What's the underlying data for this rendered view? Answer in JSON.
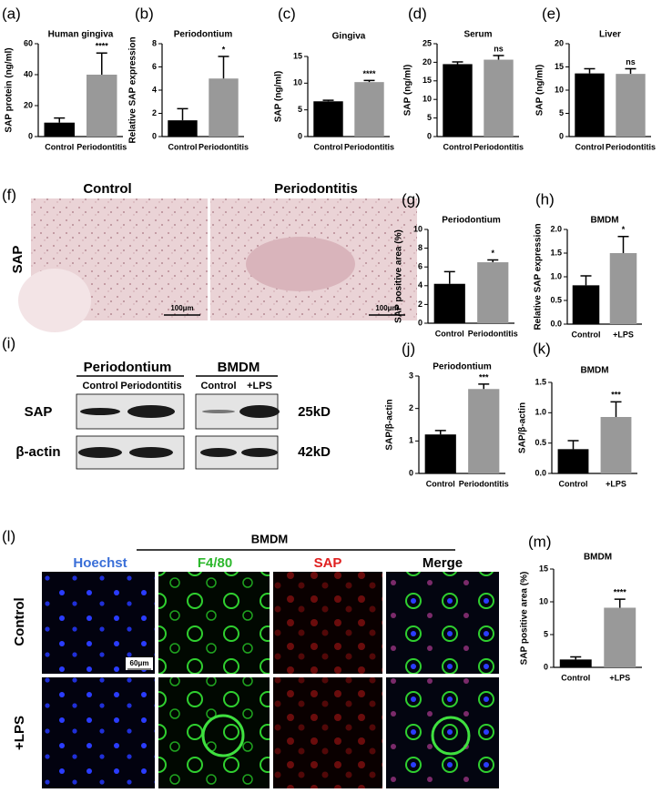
{
  "chart_data": [
    {
      "type": "bar",
      "label": "(a)",
      "title": "Human gingiva",
      "ylabel": "SAP protein (ng/ml)",
      "categories": [
        "Control",
        "Periodontitis"
      ],
      "values": [
        9,
        40
      ],
      "errors": [
        3,
        14
      ],
      "colors": [
        "#000000",
        "#999999"
      ],
      "significance": "****",
      "ylim": [
        0,
        60
      ],
      "yticks": [
        0,
        20,
        40,
        60
      ]
    },
    {
      "type": "bar",
      "label": "(b)",
      "title": "Periodontium",
      "ylabel": "Relative SAP expression",
      "categories": [
        "Control",
        "Periodontitis"
      ],
      "values": [
        1.4,
        5.0
      ],
      "errors": [
        1.0,
        1.9
      ],
      "colors": [
        "#000000",
        "#999999"
      ],
      "significance": "*",
      "ylim": [
        0,
        8
      ],
      "yticks": [
        0,
        2,
        4,
        6,
        8
      ]
    },
    {
      "type": "bar",
      "label": "(c)",
      "title": "Gingiva",
      "ylabel": "SAP (ng/ml)",
      "categories": [
        "Control",
        "Periodontitis"
      ],
      "values": [
        6.6,
        10.2
      ],
      "errors": [
        0.2,
        0.3
      ],
      "colors": [
        "#000000",
        "#999999"
      ],
      "significance": "****",
      "ylim": [
        0,
        15
      ],
      "yticks": [
        0,
        5,
        10,
        15
      ]
    },
    {
      "type": "bar",
      "label": "(d)",
      "title": "Serum",
      "ylabel": "SAP (ng/ml)",
      "categories": [
        "Control",
        "Periodontitis"
      ],
      "values": [
        19.5,
        20.7
      ],
      "errors": [
        0.6,
        1.1
      ],
      "colors": [
        "#000000",
        "#999999"
      ],
      "significance": "ns",
      "ylim": [
        0,
        25
      ],
      "yticks": [
        0,
        5,
        10,
        15,
        20,
        25
      ]
    },
    {
      "type": "bar",
      "label": "(e)",
      "title": "Liver",
      "ylabel": "SAP (ng/ml)",
      "categories": [
        "Control",
        "Periodontitis"
      ],
      "values": [
        13.6,
        13.5
      ],
      "errors": [
        1.0,
        1.1
      ],
      "colors": [
        "#000000",
        "#999999"
      ],
      "significance": "ns",
      "ylim": [
        0,
        20
      ],
      "yticks": [
        0,
        5,
        10,
        15,
        20
      ]
    },
    {
      "type": "bar",
      "label": "(g)",
      "title": "Periodontium",
      "ylabel": "SAP positive area (%)",
      "categories": [
        "Control",
        "Periodontitis"
      ],
      "values": [
        4.2,
        6.5
      ],
      "errors": [
        1.3,
        0.25
      ],
      "colors": [
        "#000000",
        "#999999"
      ],
      "significance": "*",
      "ylim": [
        0,
        10
      ],
      "yticks": [
        0,
        2,
        4,
        6,
        8,
        10
      ]
    },
    {
      "type": "bar",
      "label": "(h)",
      "title": "BMDM",
      "ylabel": "Relative SAP expression",
      "categories": [
        "Control",
        "+LPS"
      ],
      "values": [
        0.82,
        1.5
      ],
      "errors": [
        0.2,
        0.35
      ],
      "colors": [
        "#000000",
        "#999999"
      ],
      "significance": "*",
      "ylim": [
        0,
        2
      ],
      "yticks": [
        {
          "value": 0,
          "label": "0.0"
        },
        {
          "value": 0.5,
          "label": "0.5"
        },
        {
          "value": 1,
          "label": "1.0"
        },
        {
          "value": 1.5,
          "label": "1.5"
        },
        {
          "value": 2,
          "label": "2.0"
        }
      ]
    },
    {
      "type": "bar",
      "label": "(j)",
      "title": "Periodontium",
      "ylabel": "SAP/β-actin",
      "categories": [
        "Control",
        "Periodontitis"
      ],
      "values": [
        1.2,
        2.6
      ],
      "errors": [
        0.12,
        0.15
      ],
      "colors": [
        "#000000",
        "#999999"
      ],
      "significance": "***",
      "ylim": [
        0,
        3
      ],
      "yticks": [
        0,
        1,
        2,
        3
      ]
    },
    {
      "type": "bar",
      "label": "(k)",
      "title": "BMDM",
      "ylabel": "SAP/β-actin",
      "categories": [
        "Control",
        "+LPS"
      ],
      "values": [
        0.4,
        0.93
      ],
      "errors": [
        0.14,
        0.25
      ],
      "colors": [
        "#000000",
        "#999999"
      ],
      "significance": "***",
      "ylim": [
        0,
        1.5
      ],
      "yticks": [
        {
          "value": 0,
          "label": "0.0"
        },
        {
          "value": 0.5,
          "label": "0.5"
        },
        {
          "value": 1,
          "label": "1.0"
        },
        {
          "value": 1.5,
          "label": "1.5"
        }
      ]
    },
    {
      "type": "bar",
      "label": "(m)",
      "title": "BMDM",
      "ylabel": "SAP positive area (%)",
      "categories": [
        "Control",
        "+LPS"
      ],
      "values": [
        1.2,
        9.1
      ],
      "errors": [
        0.4,
        1.3
      ],
      "colors": [
        "#000000",
        "#999999"
      ],
      "significance": "****",
      "ylim": [
        0,
        15
      ],
      "yticks": [
        0,
        5,
        10,
        15
      ]
    }
  ],
  "panel_f": {
    "label": "(f)",
    "columns": [
      "Control",
      "Periodontitis"
    ],
    "row": "SAP",
    "scale_bars": [
      "100μm",
      "100μm"
    ]
  },
  "panel_i": {
    "label": "(i)",
    "groups": [
      "Periodontium",
      "BMDM"
    ],
    "columns": [
      "Control",
      "Periodontitis",
      "Control",
      "+LPS"
    ],
    "rows": [
      "SAP",
      "β-actin"
    ],
    "sizes": [
      "25kD",
      "42kD"
    ]
  },
  "panel_l": {
    "label": "(l)",
    "group": "BMDM",
    "columns": [
      "Hoechst",
      "F4/80",
      "SAP",
      "Merge"
    ],
    "rows": [
      "Control",
      "+LPS"
    ],
    "scale_bar": "60μm"
  }
}
